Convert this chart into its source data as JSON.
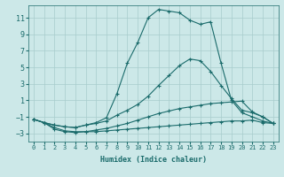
{
  "xlabel": "Humidex (Indice chaleur)",
  "ylabel": "",
  "xlim": [
    -0.5,
    23.5
  ],
  "ylim": [
    -4.0,
    12.5
  ],
  "yticks": [
    -3,
    -1,
    1,
    3,
    5,
    7,
    9,
    11
  ],
  "xticks": [
    0,
    1,
    2,
    3,
    4,
    5,
    6,
    7,
    8,
    9,
    10,
    11,
    12,
    13,
    14,
    15,
    16,
    17,
    18,
    19,
    20,
    21,
    22,
    23
  ],
  "bg_color": "#cce8e8",
  "line_color": "#1a6b6b",
  "grid_color": "#a8cccc",
  "lines": [
    {
      "x": [
        0,
        1,
        2,
        3,
        4,
        5,
        6,
        7,
        8,
        9,
        10,
        11,
        12,
        13,
        14,
        15,
        16,
        17,
        18,
        19,
        20,
        21,
        22,
        23
      ],
      "y": [
        -1.3,
        -1.7,
        -2.5,
        -2.8,
        -2.9,
        -2.8,
        -2.8,
        -2.7,
        -2.6,
        -2.5,
        -2.4,
        -2.3,
        -2.2,
        -2.1,
        -2.0,
        -1.9,
        -1.8,
        -1.7,
        -1.6,
        -1.5,
        -1.5,
        -1.4,
        -1.7,
        -1.8
      ]
    },
    {
      "x": [
        0,
        1,
        2,
        3,
        4,
        5,
        6,
        7,
        8,
        9,
        10,
        11,
        12,
        13,
        14,
        15,
        16,
        17,
        18,
        19,
        20,
        21,
        22,
        23
      ],
      "y": [
        -1.3,
        -1.7,
        -2.3,
        -2.7,
        -2.8,
        -2.8,
        -2.6,
        -2.4,
        -2.1,
        -1.8,
        -1.4,
        -1.0,
        -0.6,
        -0.3,
        0.0,
        0.2,
        0.4,
        0.6,
        0.7,
        0.8,
        0.9,
        -0.4,
        -1.0,
        -1.8
      ]
    },
    {
      "x": [
        0,
        1,
        2,
        3,
        4,
        5,
        6,
        7,
        8,
        9,
        10,
        11,
        12,
        13,
        14,
        15,
        16,
        17,
        18,
        19,
        20,
        21,
        22,
        23
      ],
      "y": [
        -1.3,
        -1.7,
        -2.0,
        -2.2,
        -2.3,
        -2.0,
        -1.8,
        -1.5,
        -0.8,
        -0.2,
        0.5,
        1.5,
        2.8,
        4.0,
        5.2,
        6.0,
        5.8,
        4.5,
        2.8,
        1.2,
        -0.2,
        -0.5,
        -1.0,
        -1.8
      ]
    },
    {
      "x": [
        0,
        1,
        2,
        3,
        4,
        5,
        6,
        7,
        8,
        9,
        10,
        11,
        12,
        13,
        14,
        15,
        16,
        17,
        18,
        19,
        20,
        21,
        22,
        23
      ],
      "y": [
        -1.3,
        -1.7,
        -2.0,
        -2.2,
        -2.3,
        -2.0,
        -1.7,
        -1.1,
        1.8,
        5.5,
        8.0,
        11.0,
        12.0,
        11.8,
        11.6,
        10.7,
        10.2,
        10.5,
        5.5,
        1.0,
        -0.5,
        -1.0,
        -1.5,
        -1.8
      ]
    }
  ]
}
